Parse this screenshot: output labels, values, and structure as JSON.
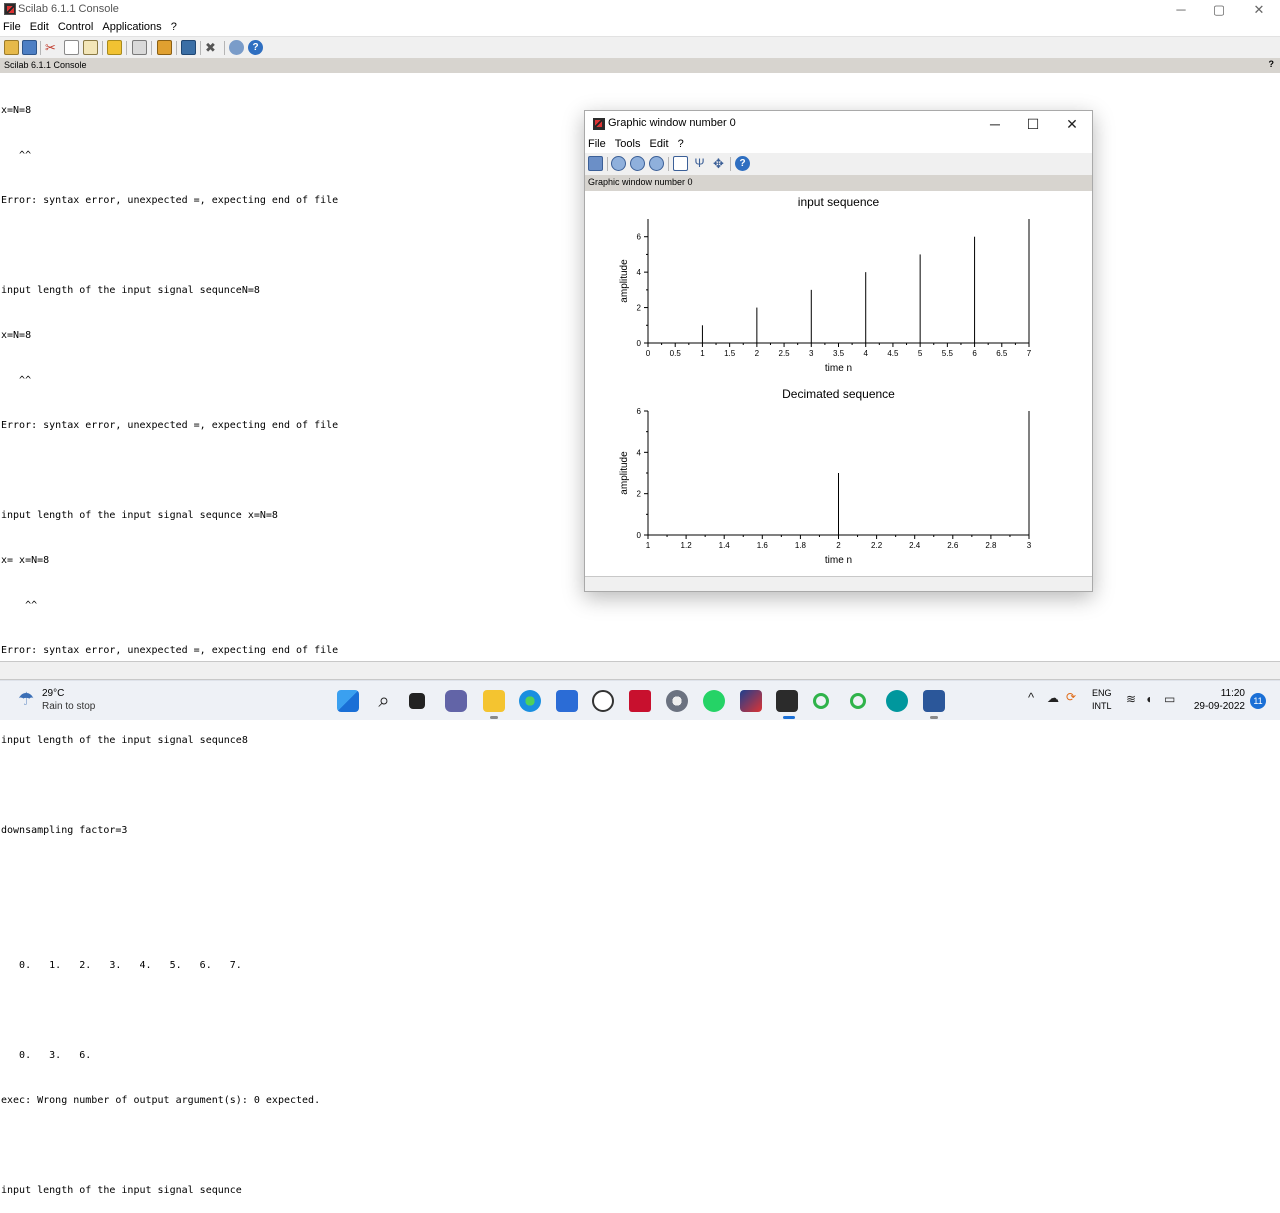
{
  "window": {
    "title": "Scilab 6.1.1 Console",
    "minimize": "─",
    "maximize": "▢",
    "close": "✕"
  },
  "menubar": [
    "File",
    "Edit",
    "Control",
    "Applications",
    "?"
  ],
  "toolbar_icons": [
    "new-script-icon",
    "open-icon",
    "cut-icon",
    "copy-icon",
    "paste-icon",
    "run-icon",
    "print-icon",
    "variable-browser-icon",
    "scinotes-icon",
    "module-manager-icon",
    "atoms-icon",
    "help-icon"
  ],
  "console": {
    "header": "Scilab 6.1.1 Console",
    "help": "?",
    "lines": [
      "x=N=8",
      "   ^^",
      "Error: syntax error, unexpected =, expecting end of file",
      "",
      "input length of the input signal sequnceN=8",
      "x=N=8",
      "   ^^",
      "Error: syntax error, unexpected =, expecting end of file",
      "",
      "input length of the input signal sequnce x=N=8",
      "x= x=N=8",
      "    ^^",
      "Error: syntax error, unexpected =, expecting end of file",
      "",
      "input length of the input signal sequnce8",
      "",
      "downsampling factor=3",
      "",
      "",
      "   0.   1.   2.   3.   4.   5.   6.   7.",
      "",
      "   0.   3.   6.",
      "exec: Wrong number of output argument(s): 0 expected.",
      "",
      "input length of the input signal sequnce"
    ]
  },
  "graphic_window": {
    "title": "Graphic window number 0",
    "menubar": [
      "File",
      "Tools",
      "Edit",
      "?"
    ],
    "header": "Graphic window number 0",
    "minimize": "─",
    "maximize": "☐",
    "close": "✕"
  },
  "chart_data": [
    {
      "type": "bar",
      "style": "stem",
      "title": "input sequence",
      "xlabel": "time n",
      "ylabel": "amplitude",
      "x": [
        0,
        1,
        2,
        3,
        4,
        5,
        6,
        7
      ],
      "values": [
        0,
        1,
        2,
        3,
        4,
        5,
        6,
        7
      ],
      "xlim": [
        0,
        7
      ],
      "ylim": [
        0,
        7
      ],
      "xticks": [
        "0",
        "0.5",
        "1",
        "1.5",
        "2",
        "2.5",
        "3",
        "3.5",
        "4",
        "4.5",
        "5",
        "5.5",
        "6",
        "6.5",
        "7"
      ],
      "yticks": [
        "0",
        "2",
        "4",
        "6"
      ],
      "grid": false
    },
    {
      "type": "bar",
      "style": "stem",
      "title": "Decimated sequence",
      "xlabel": "time n",
      "ylabel": "amplitude",
      "x": [
        1,
        2,
        3
      ],
      "values": [
        0,
        3,
        6
      ],
      "xlim": [
        1,
        3
      ],
      "ylim": [
        0,
        6
      ],
      "xticks": [
        "1",
        "1.2",
        "1.4",
        "1.6",
        "1.8",
        "2",
        "2.2",
        "2.4",
        "2.6",
        "2.8",
        "3"
      ],
      "yticks": [
        "0",
        "2",
        "4",
        "6"
      ],
      "grid": false
    }
  ],
  "taskbar": {
    "weather_temp": "29°C",
    "weather_desc": "Rain to stop",
    "lang_top": "ENG",
    "lang_bottom": "INTL",
    "time": "11:20",
    "date": "29-09-2022",
    "notifications": "11"
  }
}
